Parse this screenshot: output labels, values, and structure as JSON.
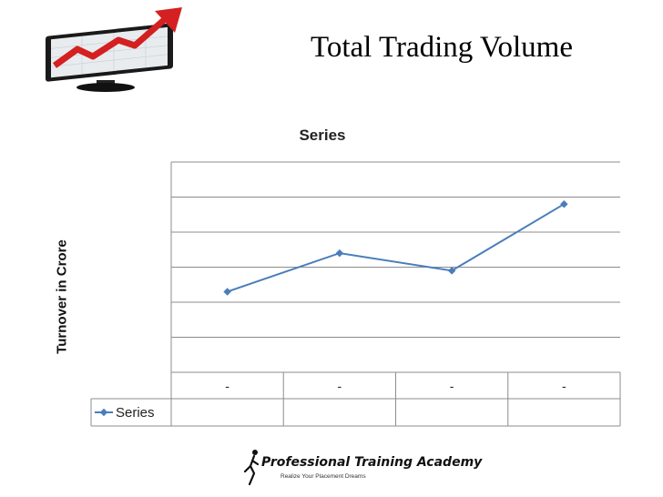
{
  "slide": {
    "title": "Total Trading Volume"
  },
  "chart_data": {
    "type": "line",
    "title": "Series",
    "ylabel": "Turnover in Crore",
    "xlabel": "",
    "categories": [
      "-",
      "-",
      "-",
      "-"
    ],
    "series": [
      {
        "name": "Series",
        "values": [
          2.3,
          3.4,
          2.9,
          4.8
        ],
        "color": "#4a7ebb"
      }
    ],
    "ylim": [
      0,
      6
    ],
    "grid": true,
    "legend": "data-table"
  },
  "logo": {
    "name": "Professional Training Academy",
    "tagline": "Realize Your Placement Dreams"
  },
  "icons": {
    "header": "rising-chart-monitor-icon",
    "logo": "running-figure-logo-icon"
  },
  "colors": {
    "series": "#4a7ebb",
    "arrow": "#d42020",
    "grid": "#8c8c8c"
  }
}
